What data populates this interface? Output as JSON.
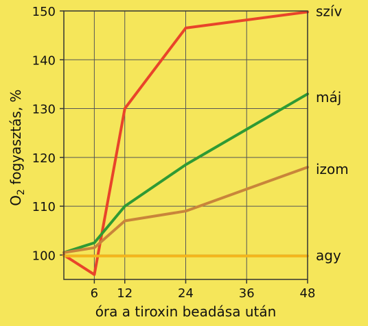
{
  "chart_data": {
    "type": "line",
    "title": "",
    "xlabel": "óra a tiroxin beadása után",
    "ylabel": "O2 fogyasztás, %",
    "ylabel_parts": {
      "pre": "O",
      "sub": "2",
      "post": " fogyasztás,  %"
    },
    "xlim": [
      0,
      48
    ],
    "ylim": [
      95,
      150
    ],
    "xticks": [
      6,
      12,
      24,
      36,
      48
    ],
    "yticks": [
      100,
      110,
      120,
      130,
      140,
      150
    ],
    "grid": true,
    "legend": "none",
    "series": [
      {
        "name": "szív",
        "color": "#e8442a",
        "x": [
          0,
          6,
          12,
          24,
          48
        ],
        "y": [
          100,
          96,
          130,
          146.5,
          149.8
        ]
      },
      {
        "name": "máj",
        "color": "#2f9a34",
        "x": [
          0,
          6,
          12,
          24,
          48
        ],
        "y": [
          100.5,
          102.5,
          110,
          118.5,
          133
        ]
      },
      {
        "name": "izom",
        "color": "#c9853a",
        "x": [
          0,
          6,
          12,
          24,
          48
        ],
        "y": [
          100.5,
          101.5,
          107,
          109,
          118
        ]
      },
      {
        "name": "agy",
        "color": "#f4b51c",
        "x": [
          0,
          48
        ],
        "y": [
          99.8,
          99.8
        ]
      }
    ]
  }
}
